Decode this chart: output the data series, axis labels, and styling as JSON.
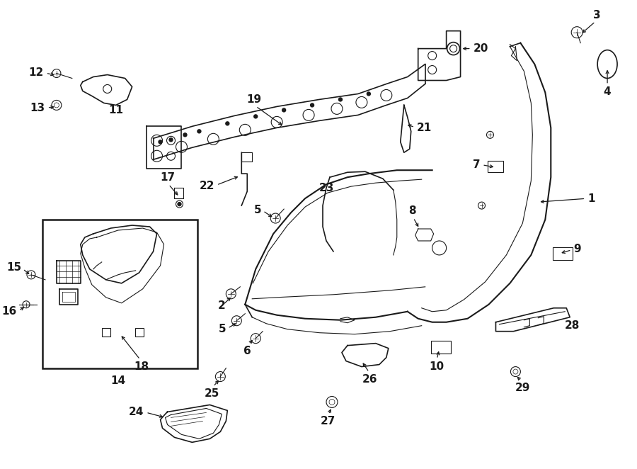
{
  "bg_color": "#ffffff",
  "line_color": "#1a1a1a",
  "fig_width": 9.0,
  "fig_height": 6.62,
  "dpi": 100,
  "num_fontsize": 11
}
